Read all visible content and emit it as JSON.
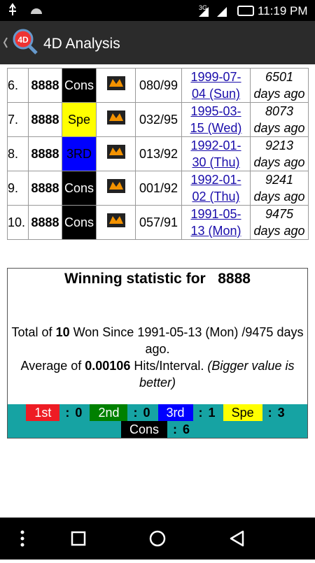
{
  "status_bar": {
    "network": "3G",
    "time": "11:19 PM"
  },
  "action_bar": {
    "title": "4D Analysis",
    "icon_label": "4D"
  },
  "results": {
    "rows": [
      {
        "rank": "6.",
        "number": "8888",
        "prize": "Cons",
        "prize_bg": "#000000",
        "prize_fg": "#ffffff",
        "draw": "080/99",
        "date": [
          "1999-07-",
          "04 (Sun)"
        ],
        "days": [
          "6501",
          "days ago"
        ]
      },
      {
        "rank": "7.",
        "number": "8888",
        "prize": "Spe",
        "prize_bg": "#ffff00",
        "prize_fg": "#000000",
        "draw": "032/95",
        "date": [
          "1995-03-",
          "15 (Wed)"
        ],
        "days": [
          "8073",
          "days ago"
        ]
      },
      {
        "rank": "8.",
        "number": "8888",
        "prize": "3RD",
        "prize_bg": "#0000ff",
        "prize_fg": "#000000",
        "draw": "013/92",
        "date": [
          "1992-01-",
          "30 (Thu)"
        ],
        "days": [
          "9213",
          "days ago"
        ]
      },
      {
        "rank": "9.",
        "number": "8888",
        "prize": "Cons",
        "prize_bg": "#000000",
        "prize_fg": "#ffffff",
        "draw": "001/92",
        "date": [
          "1992-01-",
          "02 (Thu)"
        ],
        "days": [
          "9241",
          "days ago"
        ]
      },
      {
        "rank": "10.",
        "number": "8888",
        "prize": "Cons",
        "prize_bg": "#000000",
        "prize_fg": "#ffffff",
        "draw": "057/91",
        "date": [
          "1991-05-",
          "13 (Mon)"
        ],
        "days": [
          "9475",
          "days ago"
        ]
      }
    ]
  },
  "statistic": {
    "title": "Winning statistic for",
    "number": "8888",
    "total_prefix": "Total of",
    "total_count": "10",
    "total_suffix": "Won Since 1991-05-13 (Mon) /9475 days ago.",
    "average_prefix": "Average of",
    "average_value": "0.00106",
    "average_suffix": "Hits/Interval.",
    "average_note": "(Bigger value is better)",
    "separator": ":",
    "counts": [
      {
        "label": "1st",
        "bg": "#ee1c24",
        "fg": "#ffffff",
        "count": "0"
      },
      {
        "label": "2nd",
        "bg": "#008000",
        "fg": "#ffffff",
        "count": "0"
      },
      {
        "label": "3rd",
        "bg": "#0000ff",
        "fg": "#ffffff",
        "count": "1"
      },
      {
        "label": "Spe",
        "bg": "#ffff00",
        "fg": "#000000",
        "count": "3"
      },
      {
        "label": "Cons",
        "bg": "#000000",
        "fg": "#ffffff",
        "count": "6"
      }
    ]
  }
}
